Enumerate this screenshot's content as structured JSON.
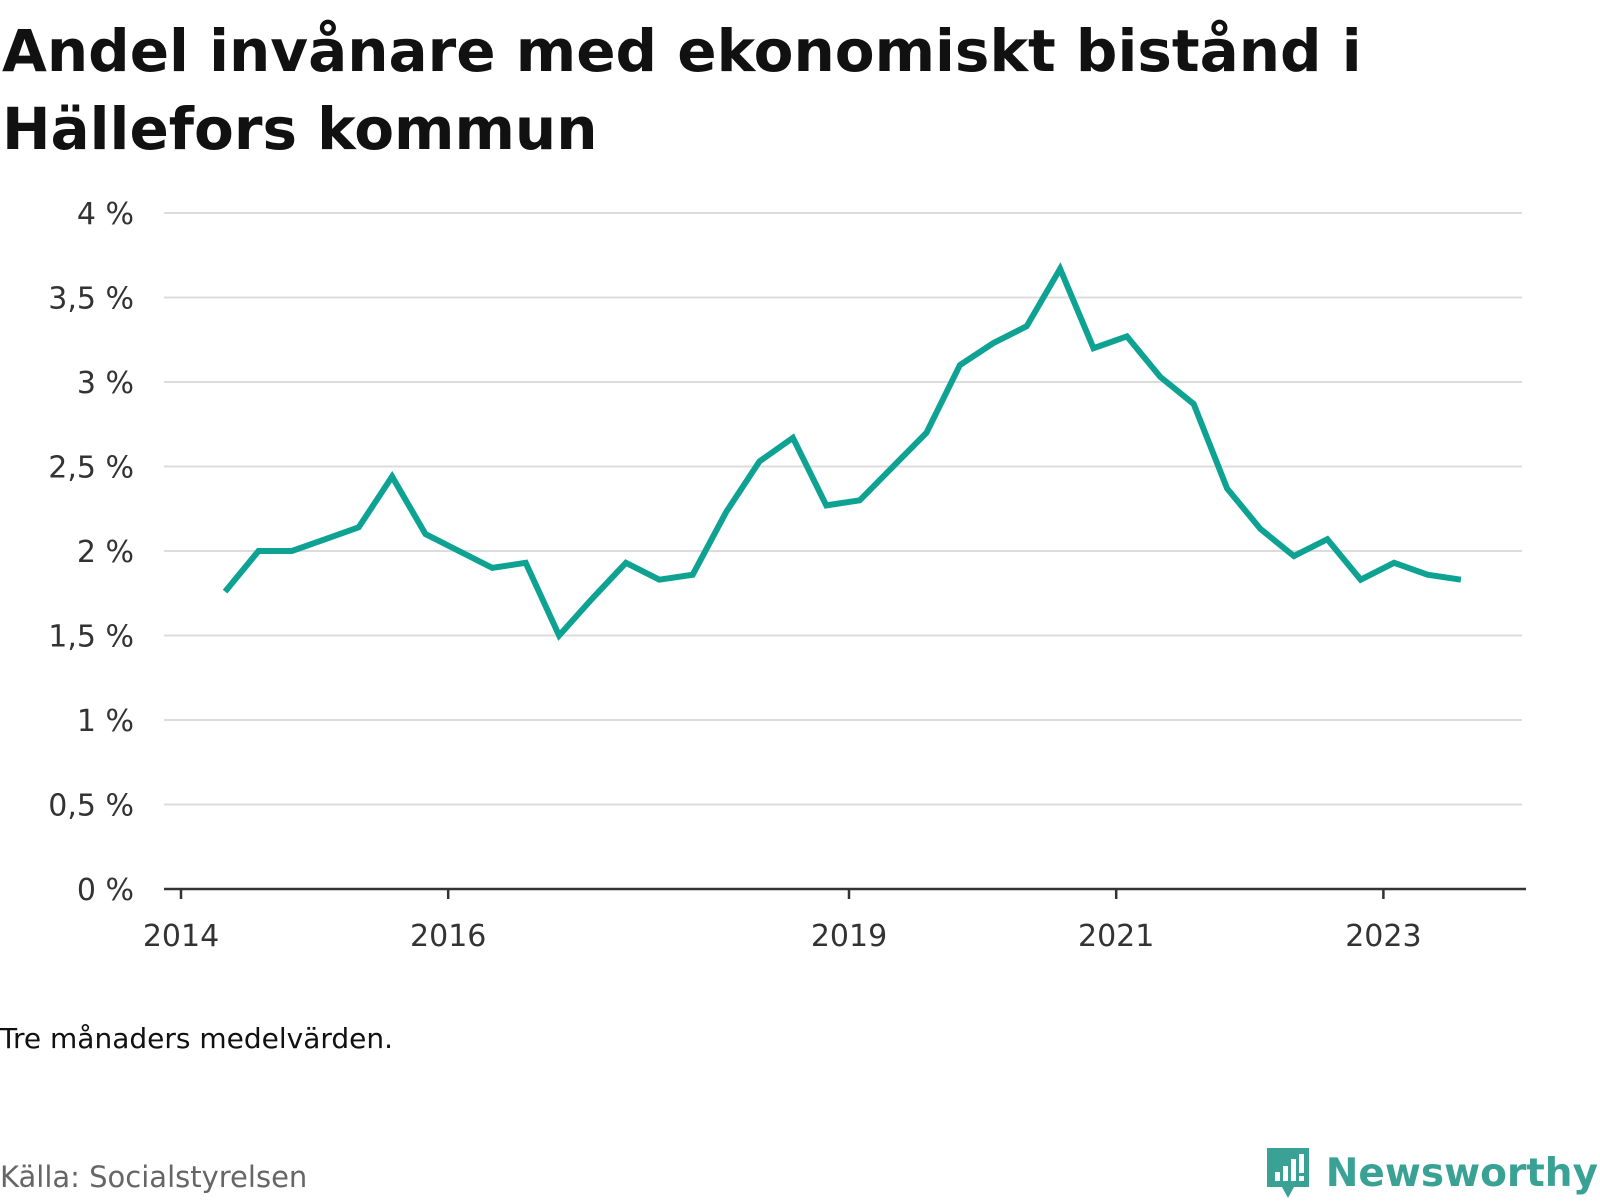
{
  "title": "Andel invånare med ekonomiskt bistånd i Hällefors kommun",
  "note": "Tre månaders medelvärden.",
  "source": "Källa: Socialstyrelsen",
  "brand": {
    "name": "Newsworthy",
    "icon": "newsworthy-logo-icon",
    "color": "#3aa295"
  },
  "chart_data": {
    "type": "line",
    "title": "Andel invånare med ekonomiskt bistånd i Hällefors kommun",
    "xlabel": "",
    "ylabel": "",
    "xlim": [
      2014,
      2024.03
    ],
    "ylim": [
      0,
      4
    ],
    "y_ticks": [
      {
        "value": 0,
        "label": "0 %"
      },
      {
        "value": 0.5,
        "label": "0,5 %"
      },
      {
        "value": 1,
        "label": "1 %"
      },
      {
        "value": 1.5,
        "label": "1,5 %"
      },
      {
        "value": 2,
        "label": "2 %"
      },
      {
        "value": 2.5,
        "label": "2,5 %"
      },
      {
        "value": 3,
        "label": "3 %"
      },
      {
        "value": 3.5,
        "label": "3,5 %"
      },
      {
        "value": 4,
        "label": "4 %"
      }
    ],
    "x_ticks": [
      {
        "value": 2014,
        "label": "2014"
      },
      {
        "value": 2016,
        "label": "2016"
      },
      {
        "value": 2019,
        "label": "2019"
      },
      {
        "value": 2021,
        "label": "2021"
      },
      {
        "value": 2023,
        "label": "2023"
      }
    ],
    "grid": true,
    "line_color": "#0ea293",
    "series": [
      {
        "x": [
          2014.33,
          2014.58,
          2014.83,
          2015.08,
          2015.33,
          2015.58,
          2015.83,
          2016.08,
          2016.33,
          2016.58,
          2016.83,
          2017.08,
          2017.33,
          2017.58,
          2017.83,
          2018.08,
          2018.33,
          2018.58,
          2018.83,
          2019.08,
          2019.33,
          2019.58,
          2019.83,
          2020.08,
          2020.33,
          2020.58,
          2020.83,
          2021.08,
          2021.33,
          2021.58,
          2021.83,
          2022.08,
          2022.33,
          2022.58,
          2022.83,
          2023.08,
          2023.33,
          2023.58
        ],
        "values": [
          1.76,
          2.0,
          2.0,
          2.07,
          2.14,
          2.44,
          2.1,
          2.0,
          1.9,
          1.93,
          1.5,
          1.72,
          1.93,
          1.83,
          1.86,
          2.23,
          2.53,
          2.67,
          2.27,
          2.3,
          2.5,
          2.7,
          3.1,
          3.23,
          3.33,
          3.67,
          3.2,
          3.27,
          3.03,
          2.87,
          2.37,
          2.13,
          1.97,
          2.07,
          1.83,
          1.93,
          1.86,
          1.83
        ]
      }
    ]
  }
}
